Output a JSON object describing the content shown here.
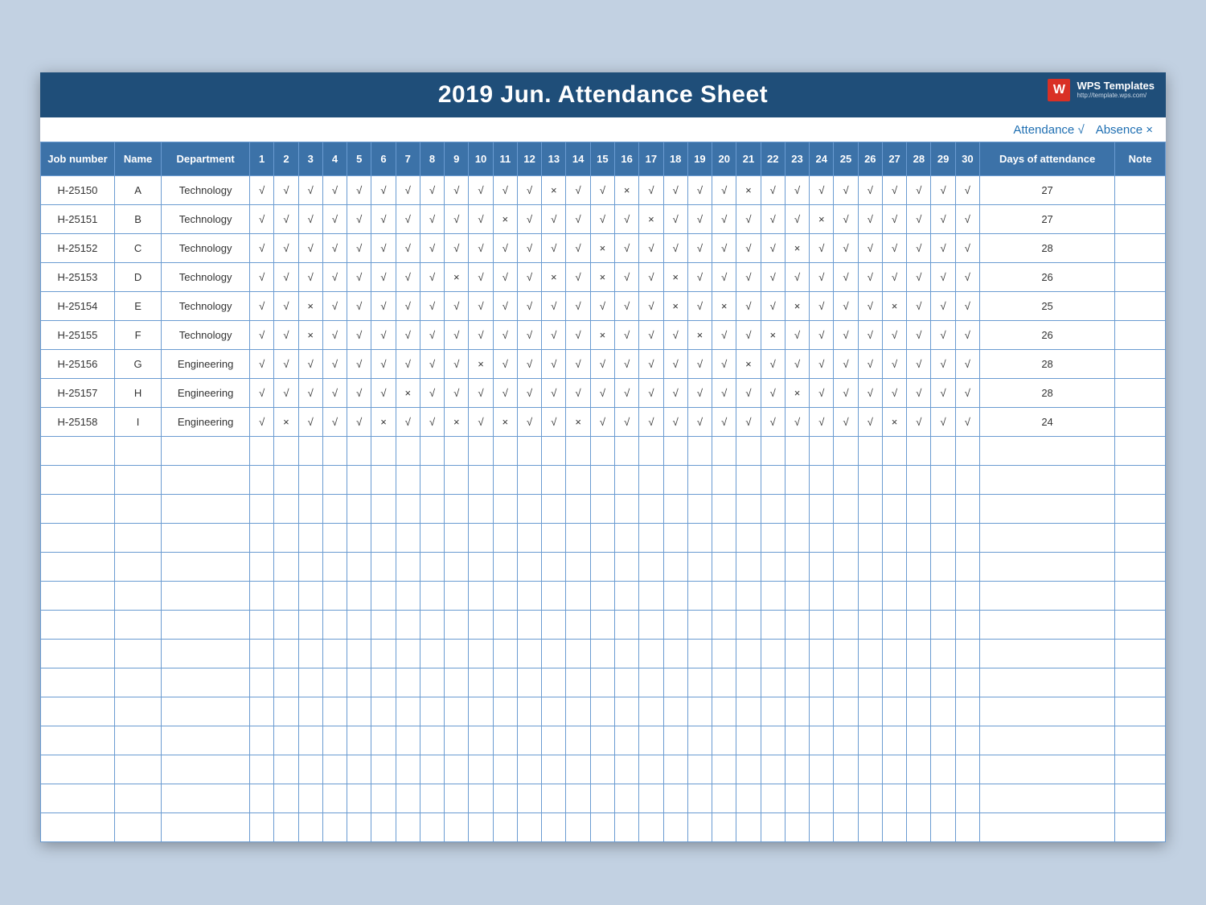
{
  "page_background": "#c2d1e2",
  "sheet_background": "#ffffff",
  "border_color": "#6a9bd1",
  "header": {
    "bg": "#1f4e79",
    "text_color": "#ffffff",
    "title": "2019 Jun.  Attendance Sheet",
    "title_fontsize": 30,
    "brand": {
      "logo_bg": "#d93025",
      "logo_letter": "W",
      "name": "WPS Templates",
      "url": "http://template.wps.com/"
    }
  },
  "legend": {
    "color": "#1f6fb2",
    "attendance_label": "Attendance",
    "attendance_mark": "√",
    "absence_label": "Absence",
    "absence_mark": "×"
  },
  "table": {
    "header_bg": "#3c72a8",
    "header_text": "#ffffff",
    "columns": {
      "job": "Job number",
      "name": "Name",
      "dept": "Department",
      "days_of_attendance": "Days of attendance",
      "note": "Note"
    },
    "day_count": 30,
    "marks": {
      "present": "√",
      "absent": "×"
    },
    "empty_row_count": 14,
    "rows": [
      {
        "job": "H-25150",
        "name": "A",
        "dept": "Technology",
        "days": [
          "√",
          "√",
          "√",
          "√",
          "√",
          "√",
          "√",
          "√",
          "√",
          "√",
          "√",
          "√",
          "×",
          "√",
          "√",
          "×",
          "√",
          "√",
          "√",
          "√",
          "×",
          "√",
          "√",
          "√",
          "√",
          "√",
          "√",
          "√",
          "√",
          "√"
        ],
        "total": "27",
        "note": ""
      },
      {
        "job": "H-25151",
        "name": "B",
        "dept": "Technology",
        "days": [
          "√",
          "√",
          "√",
          "√",
          "√",
          "√",
          "√",
          "√",
          "√",
          "√",
          "×",
          "√",
          "√",
          "√",
          "√",
          "√",
          "×",
          "√",
          "√",
          "√",
          "√",
          "√",
          "√",
          "×",
          "√",
          "√",
          "√",
          "√",
          "√",
          "√"
        ],
        "total": "27",
        "note": ""
      },
      {
        "job": "H-25152",
        "name": "C",
        "dept": "Technology",
        "days": [
          "√",
          "√",
          "√",
          "√",
          "√",
          "√",
          "√",
          "√",
          "√",
          "√",
          "√",
          "√",
          "√",
          "√",
          "×",
          "√",
          "√",
          "√",
          "√",
          "√",
          "√",
          "√",
          "×",
          "√",
          "√",
          "√",
          "√",
          "√",
          "√",
          "√"
        ],
        "total": "28",
        "note": ""
      },
      {
        "job": "H-25153",
        "name": "D",
        "dept": "Technology",
        "days": [
          "√",
          "√",
          "√",
          "√",
          "√",
          "√",
          "√",
          "√",
          "×",
          "√",
          "√",
          "√",
          "×",
          "√",
          "×",
          "√",
          "√",
          "×",
          "√",
          "√",
          "√",
          "√",
          "√",
          "√",
          "√",
          "√",
          "√",
          "√",
          "√",
          "√"
        ],
        "total": "26",
        "note": ""
      },
      {
        "job": "H-25154",
        "name": "E",
        "dept": "Technology",
        "days": [
          "√",
          "√",
          "×",
          "√",
          "√",
          "√",
          "√",
          "√",
          "√",
          "√",
          "√",
          "√",
          "√",
          "√",
          "√",
          "√",
          "√",
          "×",
          "√",
          "×",
          "√",
          "√",
          "×",
          "√",
          "√",
          "√",
          "×",
          "√",
          "√",
          "√"
        ],
        "total": "25",
        "note": ""
      },
      {
        "job": "H-25155",
        "name": "F",
        "dept": "Technology",
        "days": [
          "√",
          "√",
          "×",
          "√",
          "√",
          "√",
          "√",
          "√",
          "√",
          "√",
          "√",
          "√",
          "√",
          "√",
          "×",
          "√",
          "√",
          "√",
          "×",
          "√",
          "√",
          "×",
          "√",
          "√",
          "√",
          "√",
          "√",
          "√",
          "√",
          "√"
        ],
        "total": "26",
        "note": ""
      },
      {
        "job": "H-25156",
        "name": "G",
        "dept": "Engineering",
        "days": [
          "√",
          "√",
          "√",
          "√",
          "√",
          "√",
          "√",
          "√",
          "√",
          "×",
          "√",
          "√",
          "√",
          "√",
          "√",
          "√",
          "√",
          "√",
          "√",
          "√",
          "×",
          "√",
          "√",
          "√",
          "√",
          "√",
          "√",
          "√",
          "√",
          "√"
        ],
        "total": "28",
        "note": ""
      },
      {
        "job": "H-25157",
        "name": "H",
        "dept": "Engineering",
        "days": [
          "√",
          "√",
          "√",
          "√",
          "√",
          "√",
          "×",
          "√",
          "√",
          "√",
          "√",
          "√",
          "√",
          "√",
          "√",
          "√",
          "√",
          "√",
          "√",
          "√",
          "√",
          "√",
          "×",
          "√",
          "√",
          "√",
          "√",
          "√",
          "√",
          "√"
        ],
        "total": "28",
        "note": ""
      },
      {
        "job": "H-25158",
        "name": "I",
        "dept": "Engineering",
        "days": [
          "√",
          "×",
          "√",
          "√",
          "√",
          "×",
          "√",
          "√",
          "×",
          "√",
          "×",
          "√",
          "√",
          "×",
          "√",
          "√",
          "√",
          "√",
          "√",
          "√",
          "√",
          "√",
          "√",
          "√",
          "√",
          "√",
          "×",
          "√",
          "√",
          "√"
        ],
        "total": "24",
        "note": ""
      }
    ]
  }
}
